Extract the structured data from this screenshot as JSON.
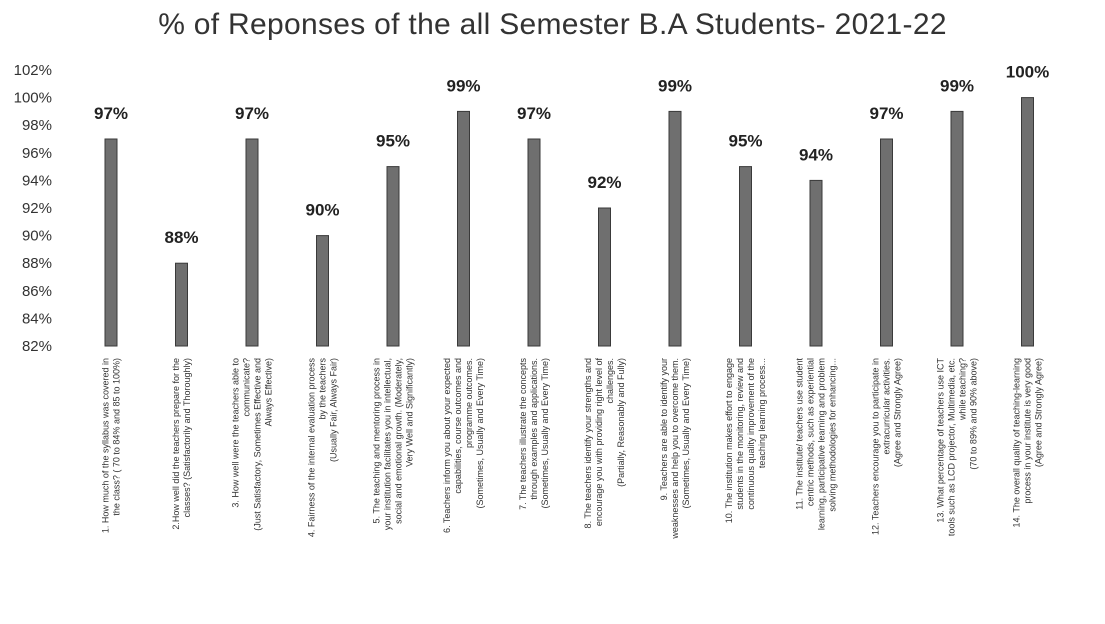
{
  "chart_data": {
    "type": "bar",
    "title": "% of Reponses of the all Semester B.A Students- 2021-22",
    "xlabel": "",
    "ylabel": "",
    "ylim": [
      82,
      102
    ],
    "ytick_values": [
      82,
      84,
      86,
      88,
      90,
      92,
      94,
      96,
      98,
      100,
      102
    ],
    "ytick_labels": [
      "82%",
      "84%",
      "86%",
      "88%",
      "90%",
      "92%",
      "94%",
      "96%",
      "98%",
      "100%",
      "102%"
    ],
    "grid": false,
    "legend": "none",
    "bar_color": "#6f6f6f",
    "categories": [
      [
        "1. How much of the syllabus was covered in",
        "the class? ( 70 to 84% and 85 to 100%)"
      ],
      [
        "2.How well did the teachers prepare for the",
        "classes? (Satisfactorily and Thoroughly)"
      ],
      [
        "3. How well were the teachers able to",
        "communicate?",
        "(Just Satisfactory, Sometimes Effective and",
        "Always Effective)"
      ],
      [
        "4. Fairness of the internal evaluation process",
        "by the teachers",
        "(Usually Fair, Always Fair)"
      ],
      [
        "5. The teaching and mentoring process in",
        "your institution facilitates you in intellectual,",
        "social and emotional growth. (Moderately,",
        "Very Well and Significantly)"
      ],
      [
        "6. Teachers inform you about your expected",
        "capabilities, course outcomes and",
        "programme outcomes.",
        "(Sometimes, Usually and Every Time)"
      ],
      [
        "7. The teachers illustrate the concepts",
        "through examples and applications.",
        "(Sometimes, Usually and Every Time)"
      ],
      [
        "8. The teachers identify your strengths and",
        "encourage you with providing right level of",
        "challenges.",
        "(Partially, Reasonably and Fully)"
      ],
      [
        "9. Teachers are able to identify your",
        "weaknesses and help you to overcome them.",
        "(Sometimes, Usually and Every Time)"
      ],
      [
        "10. The institution makes effort to engage",
        "students in the monitoring, review and",
        "continuous quality improvement of the",
        "teaching learning process..."
      ],
      [
        "11. The institute/ teachers use student",
        "centric methods, such as experiential",
        "learning, participative learning and problem",
        "solving methodologies for enhancing..."
      ],
      [
        "12. Teachers encourage you to participate in",
        "extracurricular activities.",
        "(Agree and Strongly Agree)"
      ],
      [
        "13. What percentage of teachers use ICT",
        "tools such as LCD projector, Multimedia, etc.",
        "while teaching?",
        "(70 to 89% and 90% above)"
      ],
      [
        "14. The overall quality of teaching-learning",
        "process in your institute is very good",
        "(Agree and Strongly Agree)"
      ]
    ],
    "values": [
      97,
      88,
      97,
      90,
      95,
      99,
      97,
      92,
      99,
      95,
      94,
      97,
      99,
      100
    ],
    "data_labels": [
      "97%",
      "88%",
      "97%",
      "90%",
      "95%",
      "99%",
      "97%",
      "92%",
      "99%",
      "95%",
      "94%",
      "97%",
      "99%",
      "100%"
    ]
  }
}
